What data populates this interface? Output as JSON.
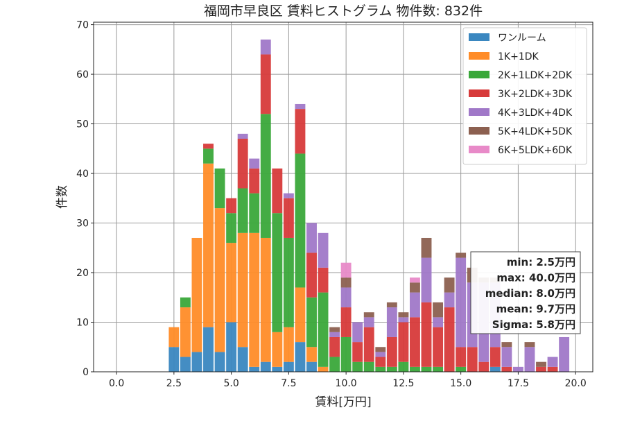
{
  "chart_data": {
    "type": "bar",
    "stacked": true,
    "title": "福岡市早良区 賃料ヒストグラム 物件数: 832件",
    "xlabel": "賃料[万円]",
    "ylabel": "件数",
    "xlim": [
      -1.0,
      20.75
    ],
    "ylim": [
      0,
      70.5
    ],
    "bin_width": 0.5,
    "x_ticks": [
      0.0,
      2.5,
      5.0,
      7.5,
      10.0,
      12.5,
      15.0,
      17.5,
      20.0
    ],
    "x_tick_labels": [
      "0.0",
      "2.5",
      "5.0",
      "7.5",
      "10.0",
      "12.5",
      "15.0",
      "17.5",
      "20.0"
    ],
    "y_ticks": [
      0,
      10,
      20,
      30,
      40,
      50,
      60,
      70
    ],
    "y_tick_labels": [
      "0",
      "10",
      "20",
      "30",
      "40",
      "50",
      "60",
      "70"
    ],
    "grid": true,
    "legend_position": "top-right",
    "bins": [
      2.5,
      3.0,
      3.5,
      4.0,
      4.5,
      5.0,
      5.5,
      6.0,
      6.5,
      7.0,
      7.5,
      8.0,
      8.5,
      9.0,
      9.5,
      10.0,
      10.5,
      11.0,
      11.5,
      12.0,
      12.5,
      13.0,
      13.5,
      14.0,
      14.5,
      15.0,
      15.5,
      16.0,
      16.5,
      17.0,
      17.5,
      18.0,
      18.5,
      19.0,
      19.5
    ],
    "series": [
      {
        "name": "ワンルーム",
        "color": "#3a87c0",
        "values": [
          5,
          3,
          4,
          9,
          4,
          10,
          5,
          1,
          2,
          1,
          2,
          6,
          2,
          0,
          0,
          0,
          0,
          0,
          0,
          0,
          0,
          0,
          0,
          0,
          0,
          0,
          0,
          0,
          1,
          0,
          0,
          0,
          0,
          0,
          0
        ]
      },
      {
        "name": "1K+1DK",
        "color": "#ff8c28",
        "values": [
          4,
          10,
          23,
          33,
          29,
          16,
          23,
          27,
          25,
          7,
          7,
          11,
          3,
          1,
          0,
          0,
          0,
          0,
          0,
          0,
          0,
          0,
          0,
          0,
          0,
          0,
          0,
          0,
          0,
          0,
          0,
          0,
          0,
          0,
          0
        ]
      },
      {
        "name": "2K+1LDK+2DK",
        "color": "#3aa83a",
        "values": [
          0,
          2,
          0,
          3,
          8,
          6,
          9,
          8,
          25,
          24,
          18,
          27,
          10,
          15,
          3,
          7,
          2,
          2,
          1,
          1,
          2,
          1,
          1,
          1,
          0,
          1,
          0,
          0,
          0,
          0,
          0,
          0,
          0,
          0,
          0
        ]
      },
      {
        "name": "3K+2LDK+3DK",
        "color": "#d73a3a",
        "values": [
          0,
          0,
          0,
          1,
          0,
          3,
          10,
          5,
          12,
          9,
          8,
          9,
          9,
          5,
          4,
          6,
          4,
          7,
          2,
          6,
          8,
          10,
          13,
          8,
          13,
          4,
          5,
          2,
          4,
          1,
          0,
          0,
          1,
          1,
          0
        ]
      },
      {
        "name": "4K+3LDK+4DK",
        "color": "#a078c8",
        "values": [
          0,
          0,
          0,
          0,
          0,
          0,
          1,
          2,
          3,
          0,
          1,
          1,
          6,
          7,
          1,
          4,
          4,
          2,
          1,
          6,
          1,
          5,
          9,
          2,
          3,
          18,
          13,
          16,
          13,
          4,
          1,
          5,
          0,
          2,
          7
        ]
      },
      {
        "name": "5K+4LDK+5DK",
        "color": "#8c6050",
        "values": [
          0,
          0,
          0,
          0,
          0,
          0,
          0,
          0,
          0,
          0,
          0,
          0,
          0,
          0,
          1,
          2,
          0,
          1,
          1,
          1,
          1,
          2,
          4,
          3,
          3,
          1,
          3,
          1,
          1,
          1,
          0,
          1,
          1,
          0,
          0
        ]
      },
      {
        "name": "6K+5LDK+6DK",
        "color": "#e88ac8",
        "values": [
          0,
          0,
          0,
          0,
          0,
          0,
          0,
          0,
          0,
          0,
          0,
          0,
          0,
          0,
          0,
          3,
          0,
          0,
          0,
          0,
          0,
          1,
          0,
          0,
          0,
          0,
          0,
          0,
          0,
          0,
          0,
          0,
          0,
          0,
          0
        ]
      }
    ],
    "stats_box": [
      "min: 2.5万円",
      "max: 40.0万円",
      "median: 8.0万円",
      "mean: 9.7万円",
      "Sigma: 5.8万円"
    ]
  }
}
